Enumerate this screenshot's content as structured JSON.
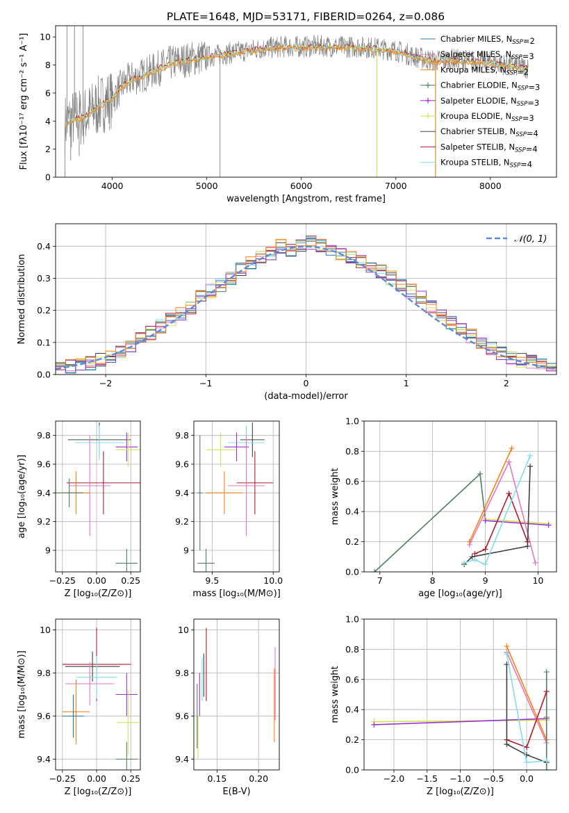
{
  "title": "PLATE=1648, MJD=53171, FIBERID=0264, z=0.086",
  "colors": {
    "Chabrier MILES": "#1f77b4",
    "Salpeter MILES": "#e377c2",
    "Kroupa MILES": "#ff7f0e",
    "Chabrier ELODIE": "#4f7f5f",
    "Salpeter ELODIE": "#9932cc",
    "Kroupa ELODIE": "#d4e157",
    "Chabrier STELIB": "#404040",
    "Salpeter STELIB": "#b2182b",
    "Kroupa STELIB": "#80deea",
    "data": "#808080",
    "gaussian": "#5b8bd8"
  },
  "chart_data": [
    {
      "id": "spectrum",
      "type": "line",
      "xlabel": "wavelength [Angstrom, rest frame]",
      "ylabel": "Flux [fλ10⁻¹⁷ erg cm⁻² s⁻¹ A⁻¹]",
      "xlim": [
        3400,
        8700
      ],
      "ylim": [
        0,
        10.8
      ],
      "xticks": [
        4000,
        5000,
        6000,
        7000,
        8000
      ],
      "yticks": [
        0,
        2,
        4,
        6,
        8,
        10
      ],
      "legend": [
        {
          "label": "Chabrier MILES, N_SSP=2",
          "model": "Chabrier MILES",
          "marker": "none"
        },
        {
          "label": "Salpeter MILES, N_SSP=3",
          "model": "Salpeter MILES",
          "marker": "none"
        },
        {
          "label": "Kroupa MILES, N_SSP=2",
          "model": "Kroupa MILES",
          "marker": "none"
        },
        {
          "label": "Chabrier ELODIE, N_SSP=3",
          "model": "Chabrier ELODIE",
          "marker": "plus"
        },
        {
          "label": "Salpeter ELODIE, N_SSP=3",
          "model": "Salpeter ELODIE",
          "marker": "plus"
        },
        {
          "label": "Kroupa ELODIE, N_SSP=3",
          "model": "Kroupa ELODIE",
          "marker": "plus"
        },
        {
          "label": "Chabrier STELIB, N_SSP=4",
          "model": "Chabrier STELIB",
          "marker": "none"
        },
        {
          "label": "Salpeter STELIB, N_SSP=4",
          "model": "Salpeter STELIB",
          "marker": "none"
        },
        {
          "label": "Kroupa STELIB, N_SSP=4",
          "model": "Kroupa STELIB",
          "marker": "none"
        }
      ],
      "continuum": {
        "x": [
          3500,
          3600,
          3700,
          3800,
          3900,
          4000,
          4100,
          4200,
          4300,
          4400,
          4500,
          4600,
          4800,
          5000,
          5200,
          5400,
          5600,
          5800,
          6000,
          6200,
          6400,
          6600,
          6800,
          7000,
          7200,
          7400,
          7600,
          7800,
          8000,
          8200,
          8400
        ],
        "y": [
          3.8,
          4.2,
          4.3,
          4.8,
          5.3,
          5.6,
          6.5,
          7.0,
          7.2,
          7.5,
          7.8,
          8.1,
          8.4,
          8.6,
          8.8,
          9.0,
          9.2,
          9.3,
          9.3,
          9.35,
          9.3,
          9.3,
          9.2,
          9.05,
          8.6,
          8.3,
          8.4,
          8.3,
          8.2,
          8.0,
          7.8
        ]
      },
      "spikes": [
        {
          "x": 3500,
          "y": 0
        },
        {
          "x": 3520,
          "y": 10.8
        },
        {
          "x": 3560,
          "y": 1.2
        },
        {
          "x": 3600,
          "y": 10.8
        },
        {
          "x": 3650,
          "y": 1.5
        },
        {
          "x": 3690,
          "y": 10.8
        },
        {
          "x": 5140,
          "y": 0
        },
        {
          "x": 6800,
          "y": 0
        },
        {
          "x": 7420,
          "y": 0
        }
      ]
    },
    {
      "id": "residuals",
      "type": "step",
      "xlabel": "(data-model)/error",
      "ylabel": "Normed distribution",
      "xlim": [
        -2.5,
        2.5
      ],
      "ylim": [
        0,
        0.47
      ],
      "xticks": [
        -2,
        -1,
        0,
        1,
        2
      ],
      "yticks": [
        0.0,
        0.1,
        0.2,
        0.3,
        0.4
      ],
      "legend": [
        {
          "label": "𝒩(0, 1)",
          "model": "gaussian"
        }
      ],
      "bins": [
        -2.5,
        -2.4,
        -2.3,
        -2.2,
        -2.1,
        -2.0,
        -1.9,
        -1.8,
        -1.7,
        -1.6,
        -1.5,
        -1.4,
        -1.3,
        -1.2,
        -1.1,
        -1.0,
        -0.9,
        -0.8,
        -0.7,
        -0.6,
        -0.5,
        -0.4,
        -0.3,
        -0.2,
        -0.1,
        0.0,
        0.1,
        0.2,
        0.3,
        0.4,
        0.5,
        0.6,
        0.7,
        0.8,
        0.9,
        1.0,
        1.1,
        1.2,
        1.3,
        1.4,
        1.5,
        1.6,
        1.7,
        1.8,
        1.9,
        2.0,
        2.1,
        2.2,
        2.3,
        2.4,
        2.5
      ],
      "base": [
        0.02,
        0.025,
        0.03,
        0.035,
        0.045,
        0.06,
        0.075,
        0.09,
        0.11,
        0.13,
        0.15,
        0.17,
        0.19,
        0.21,
        0.24,
        0.26,
        0.28,
        0.3,
        0.33,
        0.35,
        0.37,
        0.38,
        0.4,
        0.39,
        0.4,
        0.41,
        0.4,
        0.39,
        0.38,
        0.37,
        0.35,
        0.34,
        0.32,
        0.3,
        0.28,
        0.26,
        0.24,
        0.21,
        0.19,
        0.16,
        0.14,
        0.12,
        0.1,
        0.08,
        0.065,
        0.05,
        0.045,
        0.04,
        0.03,
        0.025
      ],
      "gaussian": {
        "mu": 0,
        "sigma": 1
      }
    },
    {
      "id": "age-vs-Z",
      "type": "errorbar",
      "xlabel": "Z [log₁₀(Z/Z⊙)]",
      "ylabel": "age  [log₁₀(age/yr)]",
      "xlim": [
        -0.3,
        0.32
      ],
      "ylim": [
        8.85,
        9.9
      ],
      "xticks": [
        -0.25,
        0.0,
        0.25
      ],
      "xticklabels": [
        "−0.25",
        "0.00",
        "0.25"
      ],
      "yticks": [
        9.0,
        9.2,
        9.4,
        9.6,
        9.8
      ],
      "points": [
        {
          "model": "Chabrier STELIB",
          "x": 0.02,
          "xerr": 0.23,
          "y": 9.77,
          "yerr": 0.12
        },
        {
          "model": "Kroupa STELIB",
          "x": 0.02,
          "xerr": 0.18,
          "y": 9.75,
          "yerr": 0.12
        },
        {
          "model": "Salpeter ELODIE",
          "x": 0.22,
          "xerr": 0.08,
          "y": 9.72,
          "yerr": 0.1
        },
        {
          "model": "Kroupa ELODIE",
          "x": 0.23,
          "xerr": 0.09,
          "y": 9.7,
          "yerr": 0.12
        },
        {
          "model": "Salpeter STELIB",
          "x": 0.05,
          "xerr": 0.27,
          "y": 9.47,
          "yerr": 0.22
        },
        {
          "model": "Salpeter MILES",
          "x": -0.05,
          "xerr": 0.15,
          "y": 9.45,
          "yerr": 0.35
        },
        {
          "model": "Kroupa MILES",
          "x": -0.15,
          "xerr": 0.1,
          "y": 9.4,
          "yerr": 0.15
        },
        {
          "model": "Chabrier ELODIE",
          "x": -0.2,
          "xerr": 0.1,
          "y": 9.4,
          "yerr": 0.1
        },
        {
          "model": "Chabrier ELODIE",
          "x": 0.22,
          "xerr": 0.08,
          "y": 8.91,
          "yerr": 0.1
        }
      ]
    },
    {
      "id": "age-vs-mass",
      "type": "errorbar",
      "xlabel": "mass [log₁₀(M/M⊙)]",
      "ylabel": "",
      "xlim": [
        9.35,
        10.05
      ],
      "ylim": [
        8.85,
        9.9
      ],
      "xticks": [
        9.5,
        10.0
      ],
      "xticklabels": [
        "9.5",
        "10.0"
      ],
      "yticks": [
        9.0,
        9.2,
        9.4,
        9.6,
        9.8
      ],
      "points": [
        {
          "model": "Chabrier STELIB",
          "x": 9.83,
          "xerr": 0.1,
          "y": 9.77,
          "yerr": 0.12
        },
        {
          "model": "Kroupa STELIB",
          "x": 9.78,
          "xerr": 0.15,
          "y": 9.75,
          "yerr": 0.12
        },
        {
          "model": "Salpeter ELODIE",
          "x": 9.7,
          "xerr": 0.1,
          "y": 9.72,
          "yerr": 0.1
        },
        {
          "model": "Kroupa ELODIE",
          "x": 9.57,
          "xerr": 0.12,
          "y": 9.7,
          "yerr": 0.12
        },
        {
          "model": "Salpeter STELIB",
          "x": 9.85,
          "xerr": 0.15,
          "y": 9.47,
          "yerr": 0.22
        },
        {
          "model": "Salpeter MILES",
          "x": 9.78,
          "xerr": 0.15,
          "y": 9.45,
          "yerr": 0.35
        },
        {
          "model": "Kroupa MILES",
          "x": 9.6,
          "xerr": 0.15,
          "y": 9.4,
          "yerr": 0.15
        },
        {
          "model": "Chabrier ELODIE",
          "x": 9.45,
          "xerr": 0.07,
          "y": 8.91,
          "yerr": 0.1
        },
        {
          "model": "Chabrier ELODIE",
          "x": 9.4,
          "xerr": 0.02,
          "y": 9.4,
          "yerr": 0.4
        }
      ]
    },
    {
      "id": "weight-vs-age",
      "type": "line",
      "xlabel": "age  [log₁₀(age/yr)]",
      "ylabel": "mass weight",
      "xlim": [
        6.7,
        10.35
      ],
      "ylim": [
        0,
        1.0
      ],
      "xticks": [
        7,
        8,
        9,
        10
      ],
      "yticks": [
        0.0,
        0.2,
        0.4,
        0.6,
        0.8,
        1.0
      ],
      "series": [
        {
          "model": "Chabrier ELODIE",
          "x": [
            6.9,
            8.9,
            9.0
          ],
          "y": [
            0.0,
            0.65,
            0.35
          ]
        },
        {
          "model": "Kroupa ELODIE",
          "x": [
            9.0,
            10.2
          ],
          "y": [
            0.35,
            0.32
          ]
        },
        {
          "model": "Salpeter ELODIE",
          "x": [
            9.0,
            10.2
          ],
          "y": [
            0.34,
            0.31
          ]
        },
        {
          "model": "Kroupa MILES",
          "x": [
            8.7,
            9.5
          ],
          "y": [
            0.2,
            0.82
          ]
        },
        {
          "model": "Salpeter MILES",
          "x": [
            8.7,
            9.45,
            9.95
          ],
          "y": [
            0.18,
            0.73,
            0.06
          ]
        },
        {
          "model": "Salpeter STELIB",
          "x": [
            8.8,
            9.0,
            9.45,
            9.8
          ],
          "y": [
            0.12,
            0.15,
            0.52,
            0.2
          ]
        },
        {
          "model": "Chabrier STELIB",
          "x": [
            8.6,
            8.75,
            9.8,
            9.85
          ],
          "y": [
            0.05,
            0.1,
            0.17,
            0.7
          ]
        },
        {
          "model": "Kroupa STELIB",
          "x": [
            8.6,
            8.8,
            9.0,
            9.85
          ],
          "y": [
            0.06,
            0.08,
            0.05,
            0.77
          ]
        }
      ]
    },
    {
      "id": "mass-vs-Z",
      "type": "errorbar",
      "xlabel": "Z [log₁₀(Z/Z⊙)]",
      "ylabel": "mass [log₁₀(M/M⊙)]",
      "xlim": [
        -0.3,
        0.32
      ],
      "ylim": [
        9.35,
        10.05
      ],
      "xticks": [
        -0.25,
        0.0,
        0.25
      ],
      "xticklabels": [
        "−0.25",
        "0.00",
        "0.25"
      ],
      "yticks": [
        9.4,
        9.6,
        9.8,
        10.0
      ],
      "points": [
        {
          "model": "Salpeter STELIB",
          "x": 0.0,
          "xerr": 0.25,
          "y": 9.84,
          "yerr": 0.17
        },
        {
          "model": "Chabrier STELIB",
          "x": -0.03,
          "xerr": 0.2,
          "y": 9.83,
          "yerr": 0.07
        },
        {
          "model": "Kroupa STELIB",
          "x": 0.0,
          "xerr": 0.15,
          "y": 9.78,
          "yerr": 0.1
        },
        {
          "model": "Salpeter MILES",
          "x": -0.05,
          "xerr": 0.18,
          "y": 9.75,
          "yerr": 0.1
        },
        {
          "model": "Salpeter ELODIE",
          "x": 0.22,
          "xerr": 0.08,
          "y": 9.7,
          "yerr": 0.1
        },
        {
          "model": "Kroupa MILES",
          "x": -0.15,
          "xerr": 0.1,
          "y": 9.62,
          "yerr": 0.15
        },
        {
          "model": "Chabrier MILES",
          "x": -0.17,
          "xerr": 0.08,
          "y": 9.6,
          "yerr": 0.1
        },
        {
          "model": "Kroupa ELODIE",
          "x": 0.23,
          "xerr": 0.08,
          "y": 9.57,
          "yerr": 0.15
        },
        {
          "model": "Chabrier ELODIE",
          "x": 0.22,
          "xerr": 0.08,
          "y": 9.4,
          "yerr": 0.08
        }
      ]
    },
    {
      "id": "mass-vs-ebv",
      "type": "errorbar",
      "xlabel": "E(B-V)",
      "ylabel": "",
      "xlim": [
        0.122,
        0.225
      ],
      "ylim": [
        9.35,
        10.05
      ],
      "xticks": [
        0.15,
        0.2
      ],
      "xticklabels": [
        "0.15",
        "0.20"
      ],
      "yticks": [
        9.4,
        9.6,
        9.8,
        10.0
      ],
      "points": [
        {
          "model": "Salpeter STELIB",
          "x": 0.137,
          "y": 9.84,
          "yerr": 0.17
        },
        {
          "model": "Chabrier STELIB",
          "x": 0.134,
          "y": 9.79,
          "yerr": 0.1
        },
        {
          "model": "Kroupa STELIB",
          "x": 0.132,
          "y": 9.77,
          "yerr": 0.1
        },
        {
          "model": "Salpeter ELODIE",
          "x": 0.129,
          "y": 9.7,
          "yerr": 0.1
        },
        {
          "model": "Salpeter MILES",
          "x": 0.22,
          "y": 9.75,
          "yerr": 0.17
        },
        {
          "model": "Kroupa MILES",
          "x": 0.219,
          "y": 9.65,
          "yerr": 0.17
        },
        {
          "model": "Kroupa ELODIE",
          "x": 0.127,
          "y": 9.5,
          "yerr": 0.1
        },
        {
          "model": "Chabrier ELODIE",
          "x": 0.126,
          "y": 9.6,
          "yerr": 0.15
        }
      ]
    },
    {
      "id": "weight-vs-Z",
      "type": "line",
      "xlabel": "Z [log₁₀(Z/Z⊙)]",
      "ylabel": "mass weight",
      "xlim": [
        -2.45,
        0.45
      ],
      "ylim": [
        0,
        1.0
      ],
      "xticks": [
        -2.0,
        -1.5,
        -1.0,
        -0.5,
        0.0
      ],
      "xticklabels": [
        "−2.0",
        "−1.5",
        "−1.0",
        "−0.5",
        "0.0"
      ],
      "yticks": [
        0.0,
        0.2,
        0.4,
        0.6,
        0.8,
        1.0
      ],
      "series": [
        {
          "model": "Kroupa ELODIE",
          "x": [
            -2.3,
            0.3
          ],
          "y": [
            0.32,
            0.33
          ]
        },
        {
          "model": "Salpeter ELODIE",
          "x": [
            -2.3,
            0.3
          ],
          "y": [
            0.3,
            0.34
          ]
        },
        {
          "model": "Kroupa MILES",
          "x": [
            -0.3,
            0.3
          ],
          "y": [
            0.82,
            0.2
          ]
        },
        {
          "model": "Salpeter MILES",
          "x": [
            -0.3,
            0.3
          ],
          "y": [
            0.78,
            0.18
          ]
        },
        {
          "model": "Chabrier ELODIE",
          "x": [
            0.3,
            0.3,
            0.3
          ],
          "y": [
            0.0,
            0.65,
            0.35
          ]
        },
        {
          "model": "Salpeter STELIB",
          "x": [
            -0.3,
            0.0,
            0.3
          ],
          "y": [
            0.2,
            0.15,
            0.52
          ]
        },
        {
          "model": "Chabrier STELIB",
          "x": [
            -0.3,
            -0.3,
            0.0,
            0.3
          ],
          "y": [
            0.7,
            0.17,
            0.1,
            0.05
          ]
        },
        {
          "model": "Kroupa STELIB",
          "x": [
            -0.3,
            0.0,
            0.3
          ],
          "y": [
            0.77,
            0.05,
            0.06
          ]
        }
      ]
    }
  ]
}
